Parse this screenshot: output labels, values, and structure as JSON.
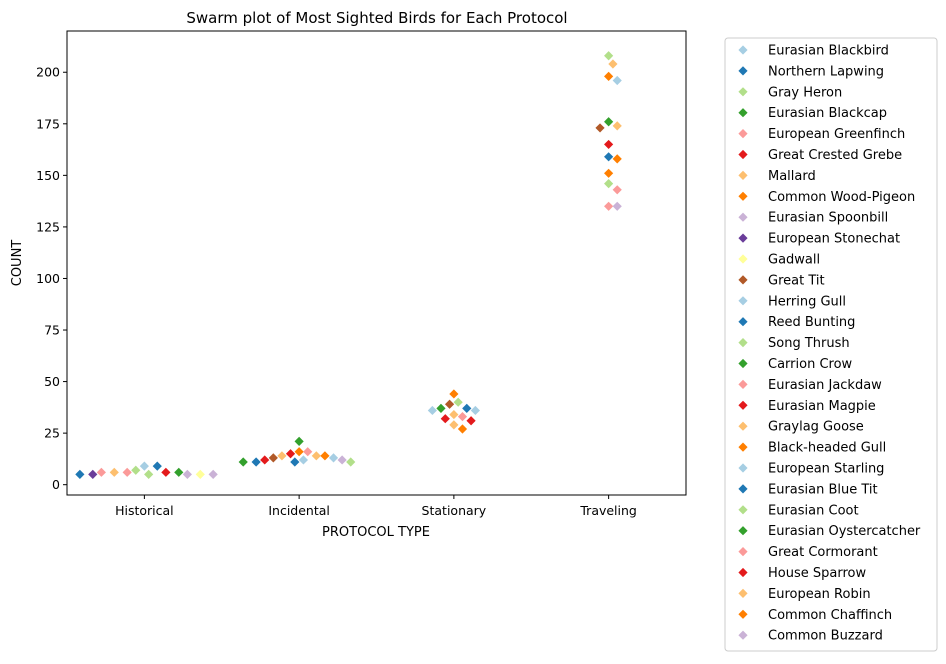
{
  "chart_data": {
    "type": "scatter",
    "title": "Swarm plot of Most Sighted Birds for Each Protocol",
    "xlabel": "PROTOCOL TYPE",
    "ylabel": "COUNT",
    "categories": [
      "Historical",
      "Incidental",
      "Stationary",
      "Traveling"
    ],
    "ylim": [
      -5,
      220
    ],
    "yticks": [
      0,
      25,
      50,
      75,
      100,
      125,
      150,
      175,
      200
    ],
    "grid": false,
    "legend_position": "outside-right",
    "marker": "diamond",
    "series": [
      {
        "name": "Eurasian Blackbird",
        "color": "#a6cee3",
        "points": [
          {
            "x": "Historical",
            "y": 9
          },
          {
            "x": "Traveling",
            "y": 196
          }
        ]
      },
      {
        "name": "Northern Lapwing",
        "color": "#1f78b4",
        "points": [
          {
            "x": "Historical",
            "y": 9
          },
          {
            "x": "Traveling",
            "y": 159
          }
        ]
      },
      {
        "name": "Gray Heron",
        "color": "#b2df8a",
        "points": [
          {
            "x": "Historical",
            "y": 5
          },
          {
            "x": "Traveling",
            "y": 208
          }
        ]
      },
      {
        "name": "Eurasian Blackcap",
        "color": "#33a02c",
        "points": [
          {
            "x": "Incidental",
            "y": 21
          },
          {
            "x": "Traveling",
            "y": 176
          }
        ]
      },
      {
        "name": "European Greenfinch",
        "color": "#fb9a99",
        "points": [
          {
            "x": "Historical",
            "y": 6
          },
          {
            "x": "Traveling",
            "y": 135
          }
        ]
      },
      {
        "name": "Great Crested Grebe",
        "color": "#e31a1c",
        "points": [
          {
            "x": "Historical",
            "y": 6
          },
          {
            "x": "Traveling",
            "y": 165
          }
        ]
      },
      {
        "name": "Mallard",
        "color": "#fdbf6f",
        "points": [
          {
            "x": "Historical",
            "y": 6
          },
          {
            "x": "Traveling",
            "y": 204
          }
        ]
      },
      {
        "name": "Common Wood-Pigeon",
        "color": "#ff7f00",
        "points": [
          {
            "x": "Incidental",
            "y": 16
          },
          {
            "x": "Traveling",
            "y": 198
          }
        ]
      },
      {
        "name": "Eurasian Spoonbill",
        "color": "#cab2d6",
        "points": [
          {
            "x": "Historical",
            "y": 5
          },
          {
            "x": "Traveling",
            "y": 135
          }
        ]
      },
      {
        "name": "European Stonechat",
        "color": "#6a3d9a",
        "points": [
          {
            "x": "Historical",
            "y": 5
          }
        ]
      },
      {
        "name": "Gadwall",
        "color": "#ffff99",
        "points": [
          {
            "x": "Historical",
            "y": 5
          }
        ]
      },
      {
        "name": "Great Tit",
        "color": "#b15928",
        "points": [
          {
            "x": "Incidental",
            "y": 13
          },
          {
            "x": "Stationary",
            "y": 39
          },
          {
            "x": "Traveling",
            "y": 173
          }
        ]
      },
      {
        "name": "Herring Gull",
        "color": "#a6cee3",
        "points": [
          {
            "x": "Incidental",
            "y": 13
          },
          {
            "x": "Stationary",
            "y": 36
          }
        ]
      },
      {
        "name": "Reed Bunting",
        "color": "#1f78b4",
        "points": [
          {
            "x": "Incidental",
            "y": 11
          },
          {
            "x": "Stationary",
            "y": 37
          }
        ]
      },
      {
        "name": "Song Thrush",
        "color": "#b2df8a",
        "points": [
          {
            "x": "Historical",
            "y": 7
          },
          {
            "x": "Traveling",
            "y": 146
          }
        ]
      },
      {
        "name": "Carrion Crow",
        "color": "#33a02c",
        "points": [
          {
            "x": "Historical",
            "y": 6
          },
          {
            "x": "Stationary",
            "y": 37
          }
        ]
      },
      {
        "name": "Eurasian Jackdaw",
        "color": "#fb9a99",
        "points": [
          {
            "x": "Incidental",
            "y": 16
          },
          {
            "x": "Traveling",
            "y": 143
          }
        ]
      },
      {
        "name": "Eurasian Magpie",
        "color": "#e31a1c",
        "points": [
          {
            "x": "Incidental",
            "y": 15
          },
          {
            "x": "Stationary",
            "y": 31
          }
        ]
      },
      {
        "name": "Graylag Goose",
        "color": "#fdbf6f",
        "points": [
          {
            "x": "Incidental",
            "y": 14
          },
          {
            "x": "Stationary",
            "y": 34
          },
          {
            "x": "Traveling",
            "y": 174
          }
        ]
      },
      {
        "name": "Black-headed Gull",
        "color": "#ff7f00",
        "points": [
          {
            "x": "Stationary",
            "y": 44
          },
          {
            "x": "Traveling",
            "y": 158
          }
        ]
      },
      {
        "name": "European Starling",
        "color": "#a6cee3",
        "points": [
          {
            "x": "Incidental",
            "y": 12
          },
          {
            "x": "Stationary",
            "y": 36
          }
        ]
      },
      {
        "name": "Eurasian Blue Tit",
        "color": "#1f78b4",
        "points": [
          {
            "x": "Historical",
            "y": 5
          },
          {
            "x": "Incidental",
            "y": 11
          }
        ]
      },
      {
        "name": "Eurasian Coot",
        "color": "#b2df8a",
        "points": [
          {
            "x": "Incidental",
            "y": 11
          },
          {
            "x": "Stationary",
            "y": 40
          }
        ]
      },
      {
        "name": "Eurasian Oystercatcher",
        "color": "#33a02c",
        "points": [
          {
            "x": "Incidental",
            "y": 11
          }
        ]
      },
      {
        "name": "Great Cormorant",
        "color": "#fb9a99",
        "points": [
          {
            "x": "Historical",
            "y": 6
          },
          {
            "x": "Stationary",
            "y": 33
          }
        ]
      },
      {
        "name": "House Sparrow",
        "color": "#e31a1c",
        "points": [
          {
            "x": "Incidental",
            "y": 12
          },
          {
            "x": "Stationary",
            "y": 32
          }
        ]
      },
      {
        "name": "European Robin",
        "color": "#fdbf6f",
        "points": [
          {
            "x": "Incidental",
            "y": 14
          },
          {
            "x": "Stationary",
            "y": 29
          }
        ]
      },
      {
        "name": "Common Chaffinch",
        "color": "#ff7f00",
        "points": [
          {
            "x": "Incidental",
            "y": 14
          },
          {
            "x": "Stationary",
            "y": 27
          },
          {
            "x": "Traveling",
            "y": 151
          }
        ]
      },
      {
        "name": "Common Buzzard",
        "color": "#cab2d6",
        "points": [
          {
            "x": "Historical",
            "y": 5
          },
          {
            "x": "Incidental",
            "y": 12
          }
        ]
      }
    ]
  }
}
